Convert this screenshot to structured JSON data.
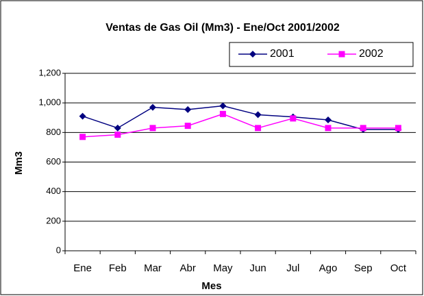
{
  "chart_data": {
    "type": "line",
    "title": "Ventas de Gas Oil (Mm3) - Ene/Oct 2001/2002",
    "x_label": "Mes",
    "y_label": "Mm3",
    "categories": [
      "Ene",
      "Feb",
      "Mar",
      "Abr",
      "May",
      "Jun",
      "Jul",
      "Ago",
      "Sep",
      "Oct"
    ],
    "series": [
      {
        "name": "2001",
        "color": "#000080",
        "marker": "diamond",
        "values": [
          910,
          830,
          970,
          955,
          980,
          920,
          905,
          885,
          820,
          820
        ]
      },
      {
        "name": "2002",
        "color": "#ff00ff",
        "marker": "square",
        "values": [
          770,
          785,
          830,
          845,
          925,
          830,
          895,
          830,
          830,
          830
        ]
      }
    ],
    "ylim": [
      0,
      1200
    ],
    "yticks": [
      0,
      200,
      400,
      600,
      800,
      {
        "value": 1000,
        "label": "1,000"
      },
      {
        "value": 1200,
        "label": "1,200"
      }
    ],
    "grid": true,
    "legend": "top-right"
  }
}
